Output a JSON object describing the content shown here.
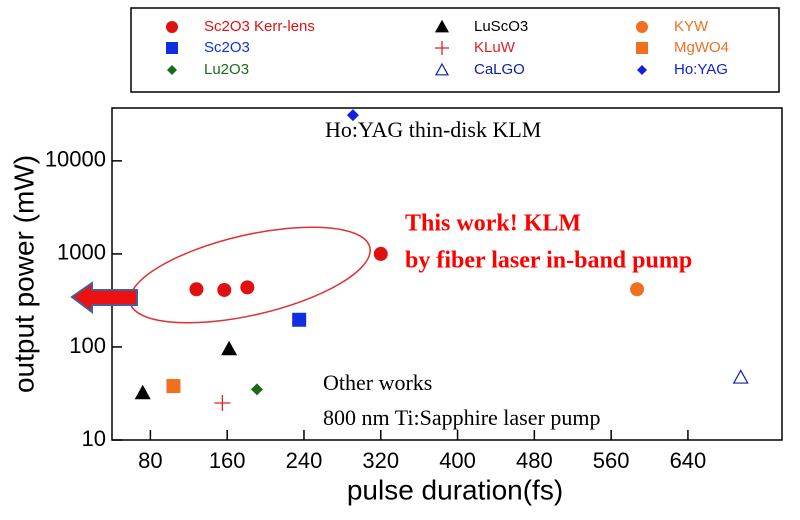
{
  "chart_data": {
    "type": "scatter",
    "x_label": "pulse duration(fs)",
    "y_label": "output power (mW)",
    "xlim": [
      40,
      738
    ],
    "xticks": [
      80,
      160,
      240,
      320,
      400,
      480,
      560,
      640
    ],
    "ylim": [
      10,
      37000
    ],
    "yticks": [
      10,
      100,
      1000,
      10000
    ],
    "log_y": true,
    "annotations": [
      "Ho:YAG thin-disk KLM",
      "This work! KLM",
      "by fiber laser in-band pump",
      "Other works",
      "800 nm Ti:Sapphire laser pump"
    ],
    "series": [
      {
        "name": "Sc2O3 Kerr-lens",
        "color": "#e01010",
        "marker": "circle",
        "x": [
          128,
          157,
          181,
          320
        ],
        "values": [
          417,
          410,
          437,
          1000
        ]
      },
      {
        "name": "Sc2O3",
        "color": "#1030e0",
        "marker": "square",
        "x": [
          235
        ],
        "values": [
          196
        ]
      },
      {
        "name": "Lu2O3",
        "color": "#1a6b1a",
        "marker": "diamond",
        "x": [
          191
        ],
        "values": [
          35
        ]
      },
      {
        "name": "LuScO3",
        "color": "#000000",
        "marker": "triangle",
        "x": [
          72,
          162
        ],
        "values": [
          32,
          95
        ]
      },
      {
        "name": "KLuW",
        "color": "#e02020",
        "marker": "plus",
        "x": [
          155
        ],
        "values": [
          25
        ]
      },
      {
        "name": "CaLGO",
        "color": "#1020a0",
        "marker": "triangle-open",
        "x": [
          695
        ],
        "values": [
          47
        ]
      },
      {
        "name": "KYW",
        "color": "#f07020",
        "marker": "circle",
        "x": [
          587
        ],
        "values": [
          417
        ]
      },
      {
        "name": "MgWO4",
        "color": "#f07020",
        "marker": "square",
        "x": [
          104
        ],
        "values": [
          38
        ]
      },
      {
        "name": "Ho:YAG",
        "color": "#1020e0",
        "marker": "diamond",
        "x": [
          291
        ],
        "values": [
          31000
        ]
      }
    ]
  }
}
